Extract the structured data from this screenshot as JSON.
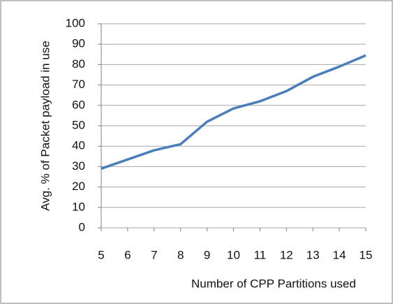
{
  "chart_data": {
    "type": "line",
    "x_label": "Number of CPP Partitions used",
    "y_label": "Avg. % of Packet payload in use",
    "x": [
      5,
      6,
      7,
      8,
      9,
      10,
      11,
      12,
      13,
      14,
      15
    ],
    "series": [
      {
        "color": "#4a7ebb",
        "values": [
          29,
          33.5,
          38,
          41,
          52,
          58.5,
          62,
          67,
          74,
          79,
          84.5
        ]
      }
    ],
    "xlim": [
      5,
      15
    ],
    "xticks": [
      5,
      6,
      7,
      8,
      9,
      10,
      11,
      12,
      13,
      14,
      15
    ],
    "ylim": [
      0,
      100
    ],
    "yticks": [
      0,
      10,
      20,
      30,
      40,
      50,
      60,
      70,
      80,
      90,
      100
    ],
    "grid": true
  }
}
